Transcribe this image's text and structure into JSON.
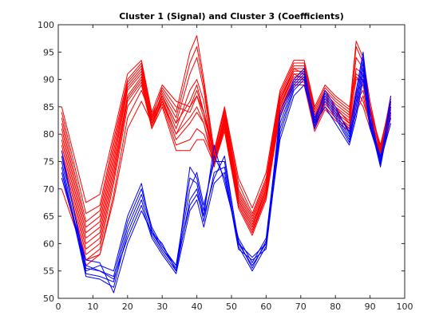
{
  "chart_data": {
    "type": "line",
    "title": "Cluster 1 (Signal) and Cluster 3 (Coefficients)",
    "xlabel": "",
    "ylabel": "",
    "xlim": [
      0,
      100
    ],
    "ylim": [
      50,
      100
    ],
    "xticks": [
      0,
      10,
      20,
      30,
      40,
      50,
      60,
      70,
      80,
      90,
      100
    ],
    "yticks": [
      50,
      55,
      60,
      65,
      70,
      75,
      80,
      85,
      90,
      95,
      100
    ],
    "grid": false,
    "legend": "none",
    "colors": {
      "cluster1": "#ff0000",
      "cluster3": "#0000ff",
      "axis": "#262626",
      "background": "#ffffff"
    },
    "x": [
      1,
      8,
      12,
      16,
      20,
      24,
      27,
      30,
      34,
      38,
      40,
      42,
      45,
      48,
      52,
      56,
      60,
      64,
      68,
      71,
      74,
      77,
      80,
      84,
      86,
      88,
      90,
      93,
      96
    ],
    "series": [
      {
        "group": "cluster1",
        "values": [
          85,
          67.5,
          69,
          80,
          91,
          93.5,
          84,
          89,
          86,
          85,
          88,
          84,
          77,
          85,
          72,
          66.5,
          73,
          88,
          93.5,
          93.5,
          85,
          89,
          87,
          85,
          91,
          90,
          85,
          77,
          87
        ]
      },
      {
        "group": "cluster1",
        "values": [
          84,
          65.5,
          67,
          79,
          90,
          93,
          83,
          88.5,
          85,
          84,
          87,
          83,
          76.5,
          84.5,
          71,
          65.5,
          72,
          87.5,
          93,
          93,
          84.5,
          88.5,
          86.5,
          84.5,
          90.5,
          89,
          84,
          78,
          86
        ]
      },
      {
        "group": "cluster1",
        "values": [
          83,
          64,
          66,
          78,
          89.5,
          92.5,
          83.5,
          88,
          84,
          95,
          98,
          90,
          77,
          84,
          70,
          65,
          71.5,
          87,
          92.5,
          92.5,
          84,
          88,
          86,
          84,
          97,
          94,
          86,
          77,
          86.5
        ]
      },
      {
        "group": "cluster1",
        "values": [
          82,
          63,
          65,
          77,
          89,
          92,
          82.5,
          87.5,
          83,
          93,
          96,
          89,
          76,
          83.5,
          69.5,
          64.5,
          71,
          86.5,
          92,
          92,
          83.5,
          87.5,
          85.5,
          83.5,
          96,
          93,
          85,
          77.5,
          86
        ]
      },
      {
        "group": "cluster1",
        "values": [
          81,
          62,
          64,
          76,
          88.5,
          91.5,
          82,
          87,
          82,
          91,
          94,
          88,
          75.5,
          83,
          69,
          64,
          70.5,
          86,
          91.5,
          91.5,
          83,
          87,
          85,
          83,
          94,
          92,
          84.5,
          78,
          85.5
        ]
      },
      {
        "group": "cluster1",
        "values": [
          80,
          61,
          63,
          75,
          88,
          91,
          82.5,
          87,
          81,
          88,
          90,
          86,
          75,
          82.5,
          68.5,
          63.5,
          70,
          85.5,
          91,
          91,
          82.5,
          86.5,
          84.5,
          82.5,
          92,
          91,
          84,
          76.5,
          85
        ]
      },
      {
        "group": "cluster1",
        "values": [
          79,
          60,
          62,
          74,
          87,
          90.5,
          81.5,
          86.5,
          80,
          85,
          87,
          84,
          74.5,
          82,
          68,
          63,
          69.5,
          85,
          90.5,
          90.5,
          82,
          86,
          84,
          82,
          90,
          90,
          83,
          77,
          84.5
        ]
      },
      {
        "group": "cluster1",
        "values": [
          78,
          59,
          61,
          73,
          86.5,
          90,
          81,
          86,
          79,
          82,
          84,
          82,
          74,
          81.5,
          67.5,
          62.5,
          69,
          84.5,
          90,
          90,
          81.5,
          85.5,
          83.5,
          81.5,
          88,
          89,
          82.5,
          76,
          84
        ]
      },
      {
        "group": "cluster1",
        "values": [
          77,
          58,
          60,
          72,
          86,
          89.5,
          82,
          85.5,
          78,
          79,
          81,
          80,
          75,
          81,
          67,
          62,
          68.5,
          84,
          89.5,
          89.5,
          81,
          85,
          83,
          81,
          86,
          88,
          82,
          76.5,
          83.5
        ]
      },
      {
        "group": "cluster1",
        "values": [
          76,
          57,
          59,
          71,
          85,
          89,
          81,
          85,
          77,
          77,
          79,
          79,
          74.5,
          80.5,
          66.5,
          61.5,
          68,
          83.5,
          89,
          89,
          80.5,
          84.5,
          82.5,
          80.5,
          84,
          87,
          81.5,
          75.5,
          83
        ]
      },
      {
        "group": "cluster1",
        "values": [
          72,
          56,
          58,
          69,
          83,
          88,
          83,
          87,
          82,
          86,
          89,
          84,
          76,
          83,
          67,
          62,
          69,
          85,
          91,
          90,
          82,
          87,
          84,
          81,
          88,
          86,
          82,
          76,
          82
        ]
      },
      {
        "group": "cluster1",
        "values": [
          70,
          57,
          58,
          68,
          81,
          86,
          82,
          86,
          80,
          83,
          85,
          82,
          75,
          82,
          68,
          63,
          70,
          86,
          92,
          91,
          83,
          88,
          85,
          82,
          87,
          85,
          81,
          77,
          83
        ]
      },
      {
        "group": "cluster3",
        "values": [
          77,
          55,
          56,
          55,
          65,
          71,
          62,
          60,
          55,
          74,
          72,
          66,
          76,
          72,
          60,
          56,
          60,
          84,
          90,
          92,
          82,
          88,
          85,
          80,
          88,
          95,
          84,
          75,
          87
        ]
      },
      {
        "group": "cluster3",
        "values": [
          76,
          56,
          55,
          54,
          64,
          70,
          63,
          59.5,
          56,
          72,
          71,
          65,
          78,
          71,
          61,
          56.5,
          61,
          83,
          89.5,
          91.5,
          82.5,
          87.5,
          84.5,
          80.5,
          87,
          94,
          83,
          74.5,
          86
        ]
      },
      {
        "group": "cluster3",
        "values": [
          75,
          54.5,
          54,
          53,
          63,
          69,
          62.5,
          59,
          55.5,
          70,
          73,
          67,
          75,
          75,
          60.5,
          55.5,
          60.5,
          82,
          89,
          91,
          83,
          87,
          84,
          79.5,
          86,
          93,
          82.5,
          75.5,
          85
        ]
      },
      {
        "group": "cluster3",
        "values": [
          74,
          54,
          53.5,
          52,
          62,
          68,
          61.5,
          58.5,
          55,
          68,
          70,
          64,
          73,
          74,
          59.5,
          55,
          59.5,
          81,
          88.5,
          90.5,
          81.5,
          86.5,
          83.5,
          79,
          85,
          92,
          82,
          74,
          84
        ]
      },
      {
        "group": "cluster3",
        "values": [
          73,
          55.5,
          55,
          53.5,
          61,
          67,
          61,
          58,
          54.5,
          66,
          68,
          63,
          71,
          73,
          59,
          57,
          59,
          80,
          88,
          90,
          81,
          86,
          83,
          78.5,
          84,
          91,
          81.5,
          76,
          83
        ]
      },
      {
        "group": "cluster3",
        "values": [
          72,
          57,
          56.5,
          51,
          60,
          66,
          62,
          59,
          56,
          67,
          69,
          65,
          72,
          76,
          60,
          57.5,
          60,
          79,
          87,
          89,
          82,
          85,
          82,
          78,
          83,
          90,
          81,
          75,
          82
        ]
      }
    ]
  }
}
